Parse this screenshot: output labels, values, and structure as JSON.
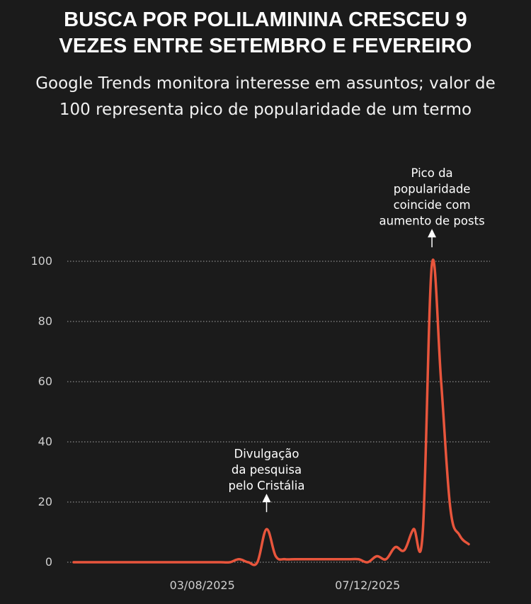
{
  "header": {
    "title_line1": "BUSCA POR POLILAMININA CRESCEU 9",
    "title_line2": "VEZES ENTRE SETEMBRO E FEVEREIRO",
    "subtitle_line1": "Google Trends monitora interesse em assuntos; valor de",
    "subtitle_line2": "100 representa pico de popularidade de um termo"
  },
  "colors": {
    "background": "#1b1b1b",
    "line": "#e8553c",
    "grid": "#8a8a8a",
    "text": "#ffffff"
  },
  "chart_data": {
    "type": "line",
    "title": "BUSCA POR POLILAMININA CRESCEU 9 VEZES ENTRE SETEMBRO E FEVEREIRO",
    "subtitle": "Google Trends monitora interesse em assuntos; valor de 100 representa pico de popularidade de um termo",
    "xlabel": "",
    "ylabel": "",
    "ylim": [
      0,
      100
    ],
    "yticks": [
      0,
      20,
      40,
      60,
      80,
      100
    ],
    "xlim": [
      "2025-04-27",
      "2026-02-22"
    ],
    "xticks": [
      {
        "date": "2025-08-03",
        "label": "03/08/2025"
      },
      {
        "date": "2025-12-07",
        "label": "07/12/2025"
      }
    ],
    "grid": "horizontal-dotted",
    "legend": "none",
    "series": [
      {
        "x": [
          "2025-04-27",
          "2025-05-04",
          "2025-05-11",
          "2025-05-18",
          "2025-05-25",
          "2025-06-01",
          "2025-06-08",
          "2025-06-15",
          "2025-06-22",
          "2025-06-29",
          "2025-07-06",
          "2025-07-13",
          "2025-07-20",
          "2025-07-27",
          "2025-08-03",
          "2025-08-10",
          "2025-08-17",
          "2025-08-24",
          "2025-08-31",
          "2025-09-07",
          "2025-09-14",
          "2025-09-21",
          "2025-09-28",
          "2025-10-05",
          "2025-10-12",
          "2025-10-19",
          "2025-10-26",
          "2025-11-02",
          "2025-11-09",
          "2025-11-16",
          "2025-11-23",
          "2025-11-30",
          "2025-12-07",
          "2025-12-14",
          "2025-12-21",
          "2025-12-28",
          "2026-01-04",
          "2026-01-11",
          "2026-01-18",
          "2026-01-25",
          "2026-02-01",
          "2026-02-08",
          "2026-02-15",
          "2026-02-22"
        ],
        "values": [
          0,
          0,
          0,
          0,
          0,
          0,
          0,
          0,
          0,
          0,
          0,
          0,
          0,
          0,
          0,
          0,
          0,
          0,
          1,
          0,
          0,
          11,
          2,
          1,
          1,
          1,
          1,
          1,
          1,
          1,
          1,
          1,
          0,
          2,
          1,
          5,
          4,
          11,
          10,
          99,
          60,
          18,
          9,
          6
        ]
      }
    ],
    "annotations": [
      {
        "x": "2025-09-21",
        "y": 11,
        "lines": [
          "Divulgação",
          "da pesquisa",
          "pelo Cristália"
        ]
      },
      {
        "x": "2026-01-25",
        "y": 99,
        "lines": [
          "Pico da",
          "popularidade",
          "coincide com",
          "aumento de posts"
        ]
      }
    ]
  }
}
